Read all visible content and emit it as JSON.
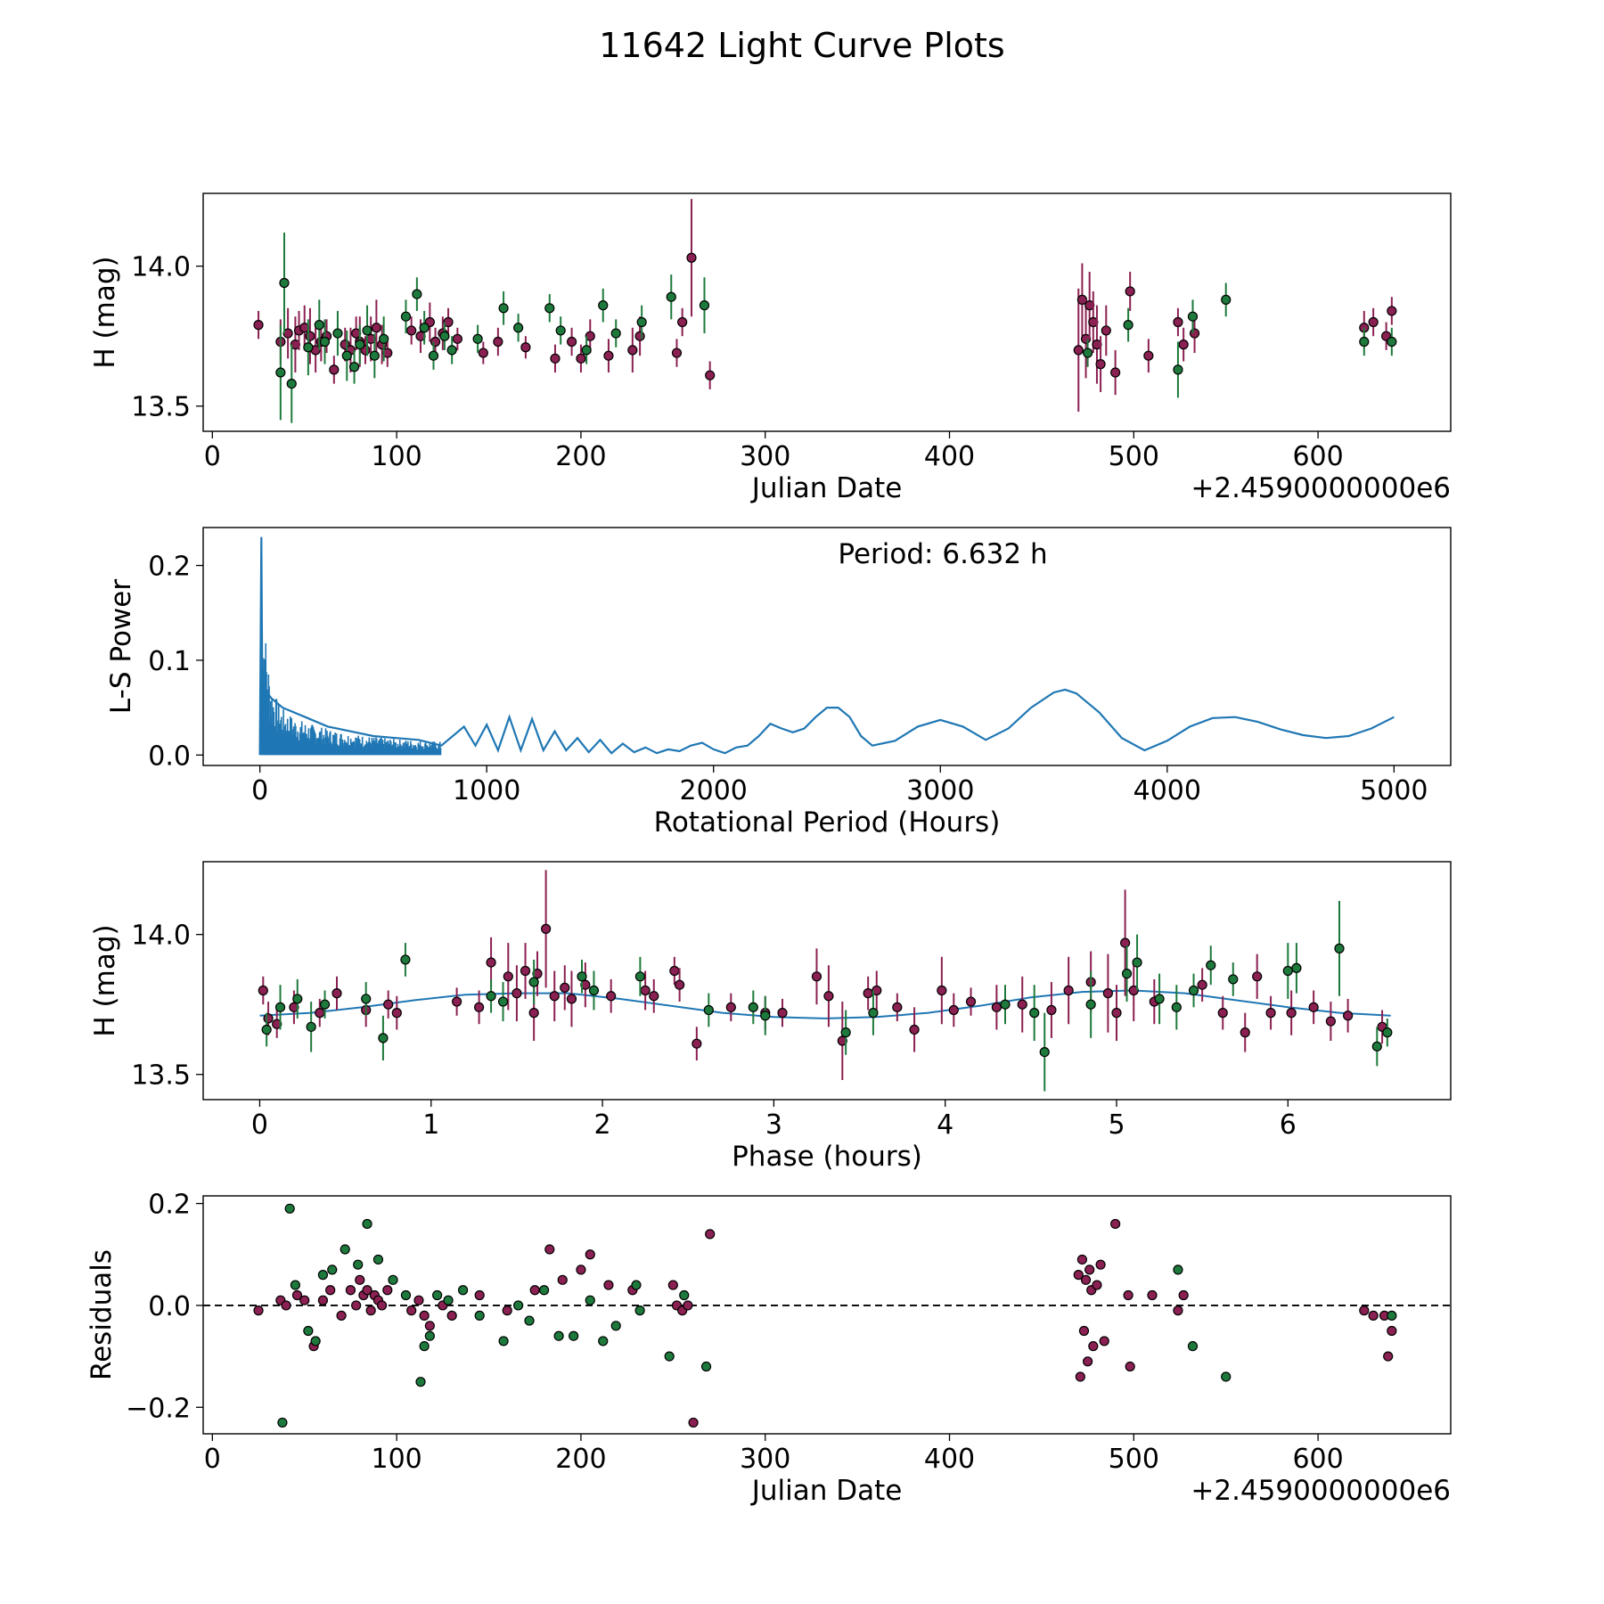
{
  "title": "11642 Light Curve Plots",
  "colors": {
    "magenta": "#8b2052",
    "green": "#1e7a3c",
    "line": "#1f77b4",
    "residual_zero": "#000000"
  },
  "chart_data": [
    {
      "type": "scatter",
      "name": "light-curve",
      "xlabel": "Julian Date",
      "ylabel": "H (mag)",
      "x_offset_label": "+2.4590000000e6",
      "xlim": [
        -5,
        672
      ],
      "ylim": [
        13.41,
        14.26
      ],
      "xticks": [
        0,
        100,
        200,
        300,
        400,
        500,
        600
      ],
      "yticks": [
        13.5,
        14.0
      ],
      "ytick_labels": [
        "13.5",
        "14.0"
      ],
      "series": [
        {
          "name": "magenta",
          "x": [
            25,
            37,
            41,
            45,
            47,
            50,
            53,
            56,
            59,
            62,
            66,
            72,
            75,
            78,
            80,
            83,
            86,
            89,
            92,
            95,
            108,
            113,
            118,
            121,
            125,
            128,
            133,
            147,
            155,
            170,
            186,
            195,
            200,
            205,
            215,
            228,
            232,
            252,
            255,
            260,
            270,
            470,
            472,
            474,
            476,
            478,
            480,
            482,
            485,
            490,
            498,
            508,
            524,
            527,
            533,
            625,
            630,
            637,
            640
          ],
          "y": [
            13.79,
            13.73,
            13.76,
            13.72,
            13.77,
            13.78,
            13.75,
            13.7,
            13.73,
            13.75,
            13.63,
            13.72,
            13.7,
            13.76,
            13.73,
            13.7,
            13.74,
            13.78,
            13.72,
            13.69,
            13.77,
            13.75,
            13.8,
            13.73,
            13.76,
            13.8,
            13.74,
            13.69,
            13.73,
            13.71,
            13.67,
            13.73,
            13.67,
            13.75,
            13.68,
            13.7,
            13.75,
            13.69,
            13.8,
            14.03,
            13.61,
            13.7,
            13.88,
            13.74,
            13.86,
            13.8,
            13.72,
            13.65,
            13.77,
            13.62,
            13.91,
            13.68,
            13.8,
            13.72,
            13.76,
            13.78,
            13.8,
            13.75,
            13.84
          ],
          "yerr": [
            0.05,
            0.08,
            0.09,
            0.1,
            0.07,
            0.08,
            0.1,
            0.08,
            0.07,
            0.06,
            0.05,
            0.06,
            0.08,
            0.06,
            0.09,
            0.05,
            0.08,
            0.1,
            0.07,
            0.05,
            0.05,
            0.06,
            0.07,
            0.05,
            0.06,
            0.05,
            0.04,
            0.04,
            0.05,
            0.04,
            0.05,
            0.05,
            0.05,
            0.06,
            0.06,
            0.08,
            0.07,
            0.05,
            0.05,
            0.21,
            0.05,
            0.22,
            0.13,
            0.14,
            0.12,
            0.11,
            0.14,
            0.1,
            0.09,
            0.08,
            0.07,
            0.06,
            0.05,
            0.06,
            0.07,
            0.06,
            0.05,
            0.05,
            0.05
          ]
        },
        {
          "name": "green",
          "x": [
            37,
            39,
            43,
            52,
            58,
            61,
            68,
            73,
            77,
            80,
            84,
            88,
            93,
            105,
            111,
            115,
            120,
            126,
            130,
            144,
            158,
            166,
            183,
            189,
            203,
            212,
            219,
            233,
            249,
            267,
            475,
            497,
            524,
            532,
            550,
            625,
            640
          ],
          "y": [
            13.62,
            13.94,
            13.58,
            13.71,
            13.79,
            13.73,
            13.76,
            13.68,
            13.64,
            13.72,
            13.77,
            13.68,
            13.74,
            13.82,
            13.9,
            13.78,
            13.68,
            13.75,
            13.7,
            13.74,
            13.85,
            13.78,
            13.85,
            13.77,
            13.7,
            13.86,
            13.76,
            13.8,
            13.89,
            13.86,
            13.69,
            13.79,
            13.63,
            13.82,
            13.88,
            13.73,
            13.73
          ],
          "yerr": [
            0.17,
            0.18,
            0.14,
            0.1,
            0.09,
            0.08,
            0.08,
            0.09,
            0.06,
            0.07,
            0.09,
            0.08,
            0.08,
            0.06,
            0.06,
            0.06,
            0.05,
            0.05,
            0.05,
            0.05,
            0.06,
            0.05,
            0.05,
            0.05,
            0.05,
            0.06,
            0.05,
            0.06,
            0.08,
            0.1,
            0.05,
            0.06,
            0.1,
            0.06,
            0.06,
            0.05,
            0.05
          ]
        }
      ]
    },
    {
      "type": "line",
      "name": "periodogram",
      "xlabel": "Rotational Period (Hours)",
      "ylabel": "L-S Power",
      "annotation": "Period: 6.632 h",
      "xlim": [
        -250,
        5250
      ],
      "ylim": [
        -0.011,
        0.24
      ],
      "xticks": [
        0,
        1000,
        2000,
        3000,
        4000,
        5000
      ],
      "yticks": [
        0.0,
        0.1,
        0.2
      ],
      "ytick_labels": [
        "0.0",
        "0.1",
        "0.2"
      ],
      "x": [
        0,
        6.6,
        10,
        20,
        50,
        100,
        200,
        300,
        400,
        500,
        600,
        700,
        800,
        900,
        950,
        1000,
        1050,
        1100,
        1150,
        1200,
        1250,
        1300,
        1350,
        1400,
        1450,
        1500,
        1550,
        1600,
        1650,
        1700,
        1750,
        1800,
        1850,
        1900,
        1950,
        2000,
        2050,
        2100,
        2150,
        2200,
        2250,
        2300,
        2350,
        2400,
        2450,
        2500,
        2550,
        2600,
        2650,
        2700,
        2800,
        2900,
        3000,
        3100,
        3200,
        3300,
        3400,
        3500,
        3550,
        3600,
        3700,
        3800,
        3900,
        4000,
        4100,
        4200,
        4300,
        4400,
        4500,
        4600,
        4700,
        4800,
        4900,
        5000
      ],
      "y": [
        0.0,
        0.23,
        0.09,
        0.07,
        0.06,
        0.05,
        0.04,
        0.03,
        0.025,
        0.02,
        0.018,
        0.016,
        0.01,
        0.03,
        0.01,
        0.032,
        0.005,
        0.04,
        0.005,
        0.038,
        0.005,
        0.025,
        0.005,
        0.018,
        0.003,
        0.016,
        0.002,
        0.012,
        0.003,
        0.008,
        0.002,
        0.006,
        0.004,
        0.01,
        0.013,
        0.006,
        0.002,
        0.008,
        0.01,
        0.02,
        0.033,
        0.028,
        0.024,
        0.028,
        0.04,
        0.05,
        0.05,
        0.04,
        0.02,
        0.01,
        0.015,
        0.03,
        0.037,
        0.03,
        0.016,
        0.028,
        0.05,
        0.066,
        0.069,
        0.065,
        0.045,
        0.018,
        0.005,
        0.015,
        0.03,
        0.039,
        0.04,
        0.035,
        0.027,
        0.021,
        0.018,
        0.02,
        0.028,
        0.04
      ]
    },
    {
      "type": "scatter",
      "name": "phased-light-curve",
      "xlabel": "Phase (hours)",
      "ylabel": "H (mag)",
      "xlim": [
        -0.33,
        6.95
      ],
      "ylim": [
        13.41,
        14.26
      ],
      "xticks": [
        0,
        1,
        2,
        3,
        4,
        5,
        6
      ],
      "yticks": [
        13.5,
        14.0
      ],
      "ytick_labels": [
        "13.5",
        "14.0"
      ],
      "fit": {
        "x": [
          0,
          0.3,
          0.6,
          0.9,
          1.2,
          1.5,
          1.8,
          2.1,
          2.4,
          2.7,
          3.0,
          3.3,
          3.6,
          3.9,
          4.2,
          4.5,
          4.8,
          5.1,
          5.4,
          5.7,
          6.0,
          6.3,
          6.6
        ],
        "y": [
          13.71,
          13.72,
          13.74,
          13.765,
          13.785,
          13.79,
          13.79,
          13.77,
          13.745,
          13.72,
          13.705,
          13.7,
          13.705,
          13.72,
          13.745,
          13.775,
          13.795,
          13.8,
          13.79,
          13.765,
          13.74,
          13.72,
          13.71
        ]
      },
      "series": [
        {
          "name": "magenta",
          "x": [
            0.02,
            0.05,
            0.1,
            0.2,
            0.35,
            0.45,
            0.62,
            0.75,
            0.8,
            1.15,
            1.28,
            1.35,
            1.45,
            1.5,
            1.55,
            1.6,
            1.62,
            1.67,
            1.72,
            1.78,
            1.82,
            1.9,
            2.05,
            2.25,
            2.3,
            2.42,
            2.45,
            2.55,
            2.75,
            2.95,
            3.05,
            3.25,
            3.32,
            3.4,
            3.55,
            3.6,
            3.72,
            3.82,
            3.98,
            4.05,
            4.15,
            4.3,
            4.45,
            4.62,
            4.72,
            4.85,
            4.95,
            5.0,
            5.05,
            5.1,
            5.22,
            5.5,
            5.62,
            5.75,
            5.82,
            5.9,
            6.02,
            6.15,
            6.25,
            6.35,
            6.55
          ],
          "y": [
            13.8,
            13.7,
            13.68,
            13.74,
            13.72,
            13.79,
            13.73,
            13.75,
            13.72,
            13.76,
            13.74,
            13.9,
            13.85,
            13.79,
            13.87,
            13.72,
            13.86,
            14.02,
            13.78,
            13.81,
            13.77,
            13.82,
            13.78,
            13.8,
            13.78,
            13.87,
            13.82,
            13.61,
            13.74,
            13.72,
            13.72,
            13.85,
            13.78,
            13.62,
            13.79,
            13.8,
            13.74,
            13.66,
            13.8,
            13.73,
            13.76,
            13.74,
            13.75,
            13.73,
            13.8,
            13.83,
            13.79,
            13.72,
            13.97,
            13.8,
            13.76,
            13.82,
            13.72,
            13.65,
            13.85,
            13.72,
            13.72,
            13.74,
            13.69,
            13.71,
            13.67
          ],
          "yerr": [
            0.05,
            0.06,
            0.05,
            0.06,
            0.05,
            0.06,
            0.06,
            0.05,
            0.06,
            0.05,
            0.06,
            0.09,
            0.12,
            0.1,
            0.1,
            0.1,
            0.08,
            0.21,
            0.09,
            0.08,
            0.1,
            0.08,
            0.06,
            0.07,
            0.06,
            0.05,
            0.06,
            0.06,
            0.05,
            0.06,
            0.05,
            0.1,
            0.11,
            0.14,
            0.06,
            0.07,
            0.05,
            0.08,
            0.12,
            0.06,
            0.05,
            0.08,
            0.1,
            0.1,
            0.12,
            0.11,
            0.14,
            0.1,
            0.19,
            0.11,
            0.08,
            0.06,
            0.06,
            0.07,
            0.08,
            0.06,
            0.08,
            0.06,
            0.07,
            0.06,
            0.06
          ]
        },
        {
          "name": "green",
          "x": [
            0.04,
            0.12,
            0.22,
            0.3,
            0.38,
            0.62,
            0.72,
            0.85,
            1.35,
            1.42,
            1.6,
            1.88,
            1.95,
            2.22,
            2.62,
            2.88,
            2.95,
            3.42,
            3.58,
            4.35,
            4.52,
            4.58,
            4.85,
            5.06,
            5.12,
            5.25,
            5.35,
            5.45,
            5.55,
            5.68,
            6.0,
            6.05,
            6.3,
            6.52,
            6.58
          ],
          "y": [
            13.66,
            13.74,
            13.77,
            13.67,
            13.75,
            13.77,
            13.63,
            13.91,
            13.78,
            13.76,
            13.83,
            13.85,
            13.8,
            13.85,
            13.73,
            13.74,
            13.71,
            13.65,
            13.72,
            13.75,
            13.72,
            13.58,
            13.75,
            13.86,
            13.9,
            13.77,
            13.74,
            13.8,
            13.89,
            13.84,
            13.87,
            13.88,
            13.95,
            13.6,
            13.65
          ],
          "yerr": [
            0.06,
            0.08,
            0.07,
            0.09,
            0.05,
            0.06,
            0.08,
            0.06,
            0.06,
            0.07,
            0.08,
            0.06,
            0.07,
            0.07,
            0.06,
            0.06,
            0.07,
            0.08,
            0.08,
            0.07,
            0.1,
            0.14,
            0.12,
            0.1,
            0.1,
            0.09,
            0.08,
            0.06,
            0.07,
            0.06,
            0.1,
            0.09,
            0.17,
            0.07,
            0.05
          ]
        }
      ]
    },
    {
      "type": "scatter",
      "name": "residuals",
      "xlabel": "Julian Date",
      "ylabel": "Residuals",
      "x_offset_label": "+2.4590000000e6",
      "xlim": [
        -5,
        672
      ],
      "ylim": [
        -0.252,
        0.215
      ],
      "xticks": [
        0,
        100,
        200,
        300,
        400,
        500,
        600
      ],
      "yticks": [
        -0.2,
        0.0,
        0.2
      ],
      "ytick_labels": [
        "−0.2",
        "0.0",
        "0.2"
      ],
      "zero_line": 0.0,
      "series": [
        {
          "name": "magenta",
          "x": [
            25,
            37,
            40,
            46,
            50,
            55,
            60,
            64,
            70,
            75,
            78,
            80,
            82,
            84,
            86,
            88,
            90,
            92,
            95,
            108,
            112,
            115,
            118,
            125,
            130,
            145,
            160,
            175,
            183,
            190,
            200,
            205,
            215,
            228,
            250,
            252,
            255,
            258,
            261,
            270,
            470,
            471,
            472,
            473,
            474,
            475,
            476,
            477,
            478,
            480,
            482,
            484,
            490,
            497,
            498,
            510,
            524,
            527,
            625,
            630,
            636,
            638,
            640
          ],
          "y": [
            -0.01,
            0.01,
            0.0,
            0.02,
            0.01,
            -0.08,
            0.01,
            0.03,
            -0.02,
            0.03,
            0.0,
            0.05,
            0.02,
            0.03,
            -0.01,
            0.02,
            0.01,
            0.0,
            0.03,
            -0.01,
            0.01,
            -0.02,
            -0.04,
            0.0,
            -0.02,
            0.02,
            -0.01,
            0.03,
            0.11,
            0.05,
            0.07,
            0.1,
            0.04,
            0.03,
            0.04,
            0.0,
            -0.01,
            0.0,
            -0.23,
            0.14,
            0.06,
            -0.14,
            0.09,
            -0.05,
            0.05,
            -0.11,
            0.07,
            0.03,
            -0.08,
            0.04,
            0.08,
            -0.07,
            0.16,
            0.02,
            -0.12,
            0.02,
            -0.01,
            0.02,
            -0.01,
            -0.02,
            -0.02,
            -0.1,
            -0.05
          ]
        },
        {
          "name": "green",
          "x": [
            38,
            42,
            45,
            52,
            56,
            60,
            65,
            72,
            79,
            84,
            90,
            98,
            105,
            113,
            115,
            118,
            122,
            128,
            136,
            145,
            158,
            166,
            172,
            180,
            188,
            196,
            205,
            212,
            219,
            230,
            232,
            248,
            256,
            268,
            524,
            532,
            550,
            640
          ],
          "y": [
            -0.23,
            0.19,
            0.04,
            -0.05,
            -0.07,
            0.06,
            0.07,
            0.11,
            0.08,
            0.16,
            0.09,
            0.05,
            0.02,
            -0.15,
            -0.08,
            -0.06,
            0.02,
            0.01,
            0.03,
            -0.02,
            -0.07,
            0.0,
            -0.03,
            0.03,
            -0.06,
            -0.06,
            0.01,
            -0.07,
            -0.04,
            0.04,
            -0.01,
            -0.1,
            0.02,
            -0.12,
            0.07,
            -0.08,
            -0.14,
            -0.02
          ]
        }
      ]
    }
  ]
}
